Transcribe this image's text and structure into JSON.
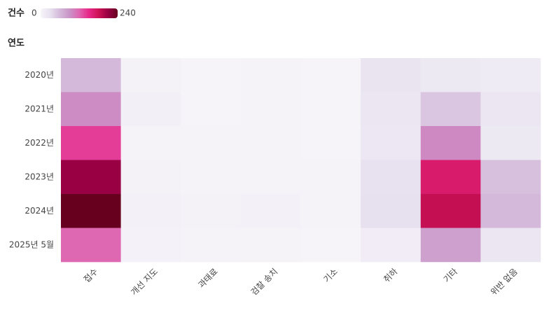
{
  "chart_data": {
    "type": "heatmap",
    "legend_title": "건수",
    "zlim": [
      0,
      240
    ],
    "colorscale": [
      "#f7f4f9",
      "#e7e1ef",
      "#d4b9da",
      "#c994c7",
      "#df65b0",
      "#e7298a",
      "#ce1256",
      "#980043",
      "#67001f"
    ],
    "y_label": "연도",
    "rows": [
      "2020년",
      "2021년",
      "2022년",
      "2023년",
      "2024년",
      "2025년 5월"
    ],
    "columns": [
      "접수",
      "개선 지도",
      "과태료",
      "검찰 송치",
      "기소",
      "취하",
      "기타",
      "위반 없음"
    ],
    "values": [
      [
        60,
        5,
        1,
        2,
        1,
        25,
        18,
        15
      ],
      [
        95,
        8,
        1,
        2,
        1,
        22,
        50,
        22
      ],
      [
        140,
        3,
        2,
        2,
        1,
        20,
        97,
        18
      ],
      [
        210,
        5,
        3,
        3,
        2,
        28,
        168,
        55
      ],
      [
        240,
        6,
        5,
        6,
        2,
        30,
        185,
        60
      ],
      [
        118,
        4,
        3,
        2,
        1,
        12,
        80,
        22
      ]
    ]
  }
}
